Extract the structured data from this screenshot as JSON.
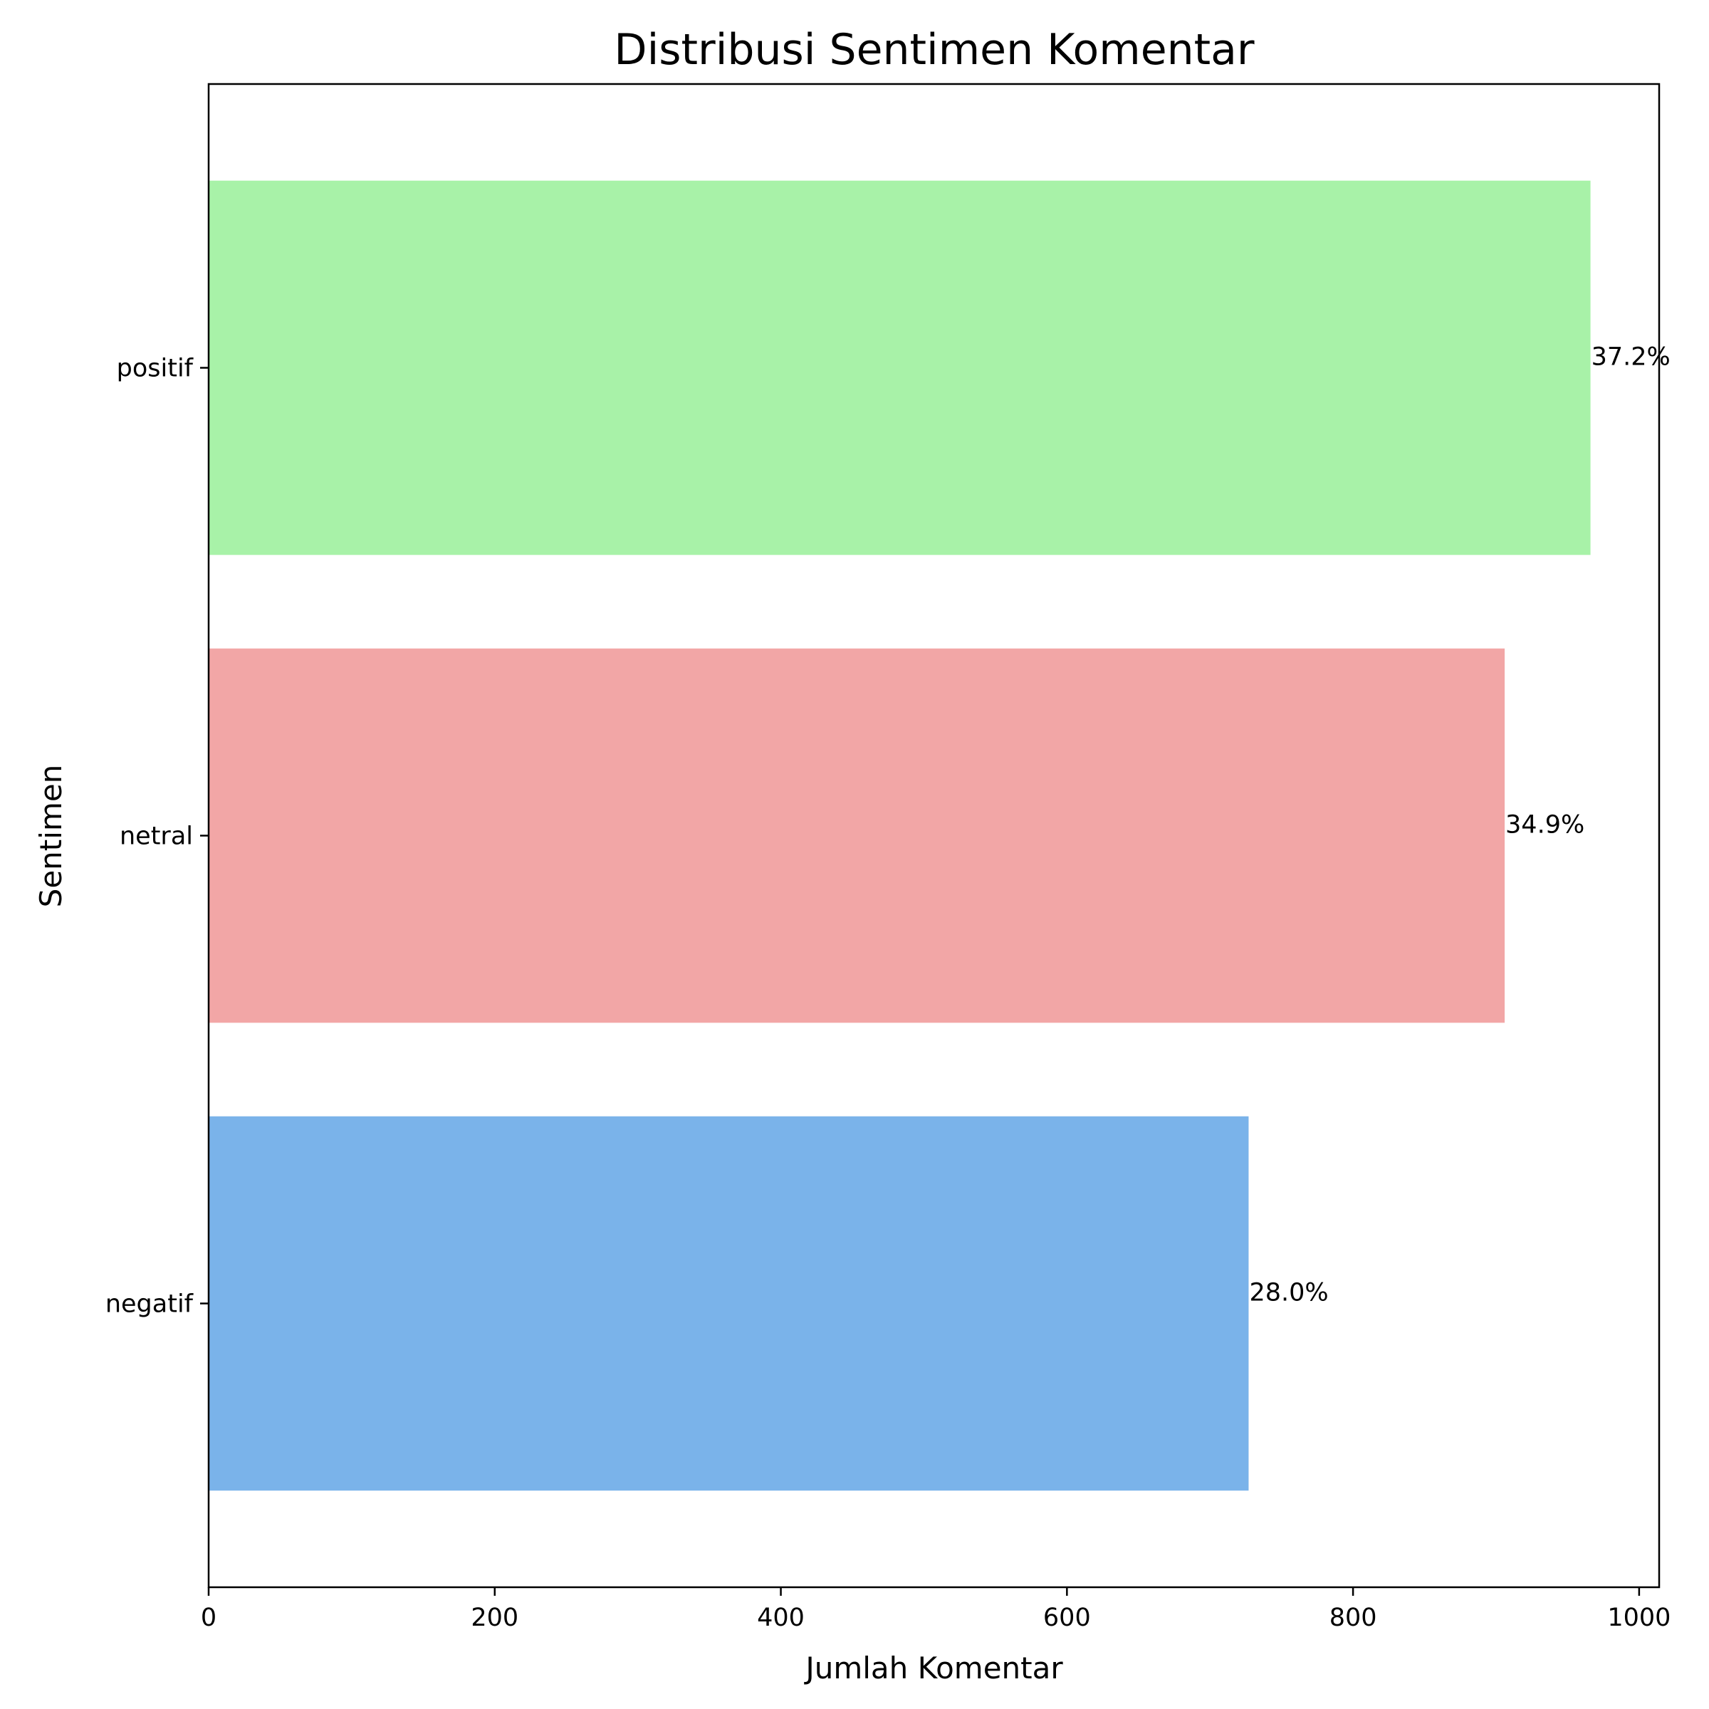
{
  "chart_data": {
    "type": "bar",
    "orientation": "horizontal",
    "title": "Distribusi Sentimen Komentar",
    "xlabel": "Jumlah Komentar",
    "ylabel": "Sentimen",
    "categories": [
      "positif",
      "netral",
      "negatif"
    ],
    "values": [
      966,
      906,
      727
    ],
    "data_labels": [
      "37.2%",
      "34.9%",
      "28.0%"
    ],
    "colors": [
      "#a8f2a8",
      "#f2a6a6",
      "#7ab3ea"
    ],
    "xlim": [
      0,
      1014
    ],
    "xticks": [
      0,
      200,
      400,
      600,
      800,
      1000
    ],
    "grid": false,
    "legend": "none"
  }
}
